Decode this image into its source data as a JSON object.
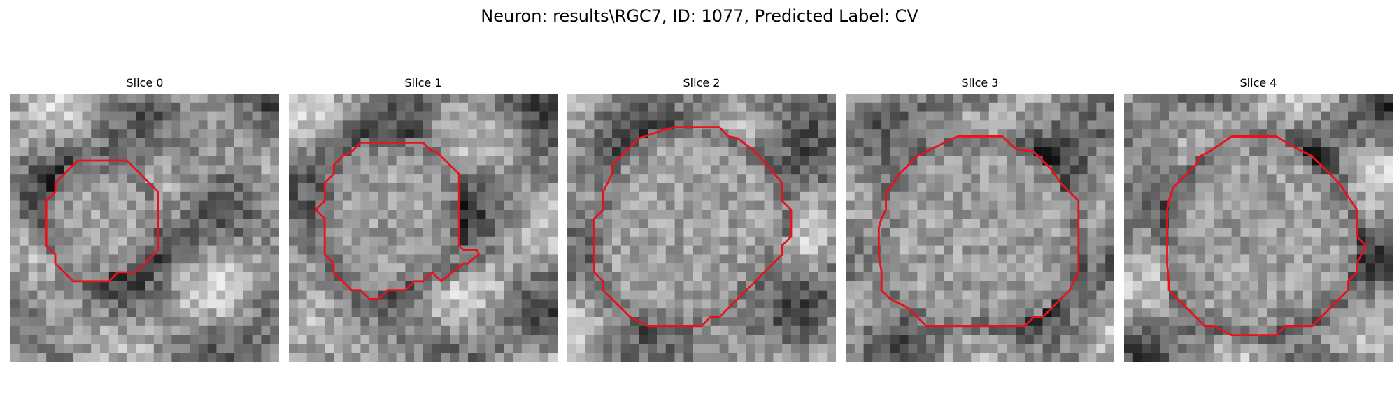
{
  "figure": {
    "title": "Neuron: results\\RGC7, ID: 1077, Predicted Label: CV"
  },
  "slices": [
    {
      "label": "Slice 0"
    },
    {
      "label": "Slice 1"
    },
    {
      "label": "Slice 2"
    },
    {
      "label": "Slice 3"
    },
    {
      "label": "Slice 4"
    }
  ],
  "colors": {
    "contour": "#e8121c",
    "background": "#ffffff"
  }
}
